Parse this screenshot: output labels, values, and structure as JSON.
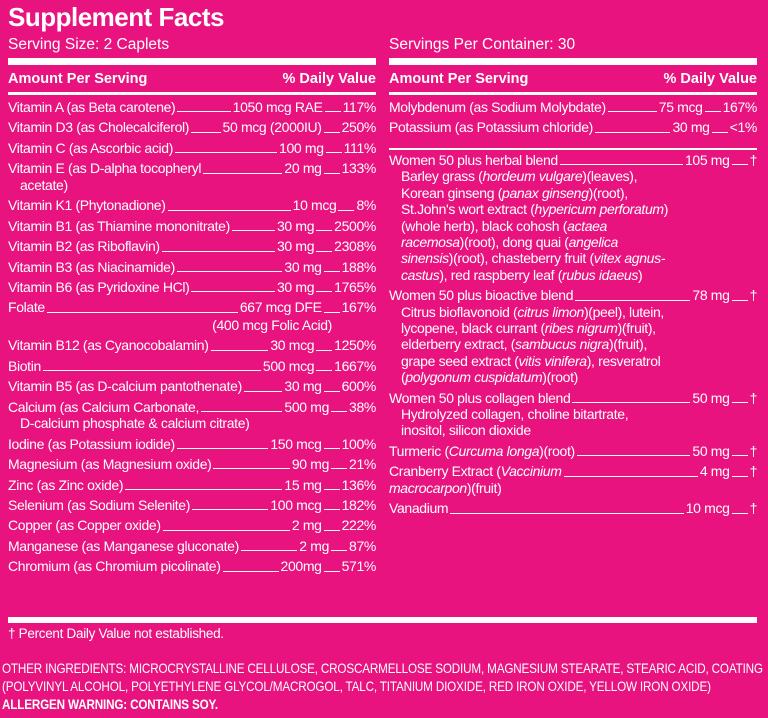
{
  "title": "Supplement Facts",
  "serving_size": "Serving Size: 2 Caplets",
  "servings_per_container": "Servings Per Container: 30",
  "headers": {
    "amount": "Amount Per Serving",
    "dv": "% Daily Value"
  },
  "left": [
    {
      "name": "Vitamin A (as Beta carotene)",
      "amount": "1050 mcg RAE",
      "dv": "117%"
    },
    {
      "name": "Vitamin D3 (as Cholecalciferol)",
      "amount": "50 mcg (2000IU)",
      "dv": "250%"
    },
    {
      "name": "Vitamin C (as Ascorbic acid)",
      "amount": "100 mg",
      "dv": "111%"
    },
    {
      "name": "Vitamin E (as D-alpha tocopheryl",
      "cont": "acetate)",
      "amount": "20 mg",
      "dv": "133%"
    },
    {
      "name": "Vitamin K1 (Phytonadione)",
      "amount": "10 mcg",
      "dv": "8%"
    },
    {
      "name": "Vitamin B1 (as Thiamine mononitrate)",
      "amount": "30 mg",
      "dv": "2500%"
    },
    {
      "name": "Vitamin B2 (as Riboflavin)",
      "amount": "30 mg",
      "dv": "2308%"
    },
    {
      "name": "Vitamin B3 (as Niacinamide)",
      "amount": "30 mg",
      "dv": "188%"
    },
    {
      "name": "Vitamin B6 (as Pyridoxine HCl)",
      "amount": "30 mg",
      "dv": "1765%"
    },
    {
      "name": "Folate",
      "amount": "667 mcg DFE",
      "dv": "167%",
      "sub": "(400 mcg Folic Acid)"
    },
    {
      "name": "Vitamin B12 (as Cyanocobalamin)",
      "amount": "30 mcg",
      "dv": "1250%"
    },
    {
      "name": "Biotin",
      "amount": "500 mcg",
      "dv": "1667%"
    },
    {
      "name": "Vitamin B5 (as D-calcium pantothenate)",
      "amount": "30 mg",
      "dv": "600%"
    },
    {
      "name": "Calcium (as Calcium Carbonate,",
      "cont": "D-calcium phosphate & calcium citrate)",
      "amount": "500 mg",
      "dv": "38%"
    },
    {
      "name": "Iodine (as Potassium iodide)",
      "amount": "150 mcg",
      "dv": "100%"
    },
    {
      "name": "Magnesium (as Magnesium oxide)",
      "amount": "90 mg",
      "dv": "21%"
    },
    {
      "name": "Zinc (as Zinc oxide)",
      "amount": "15 mg",
      "dv": "136%"
    },
    {
      "name": "Selenium (as Sodium Selenite)",
      "amount": "100 mcg",
      "dv": "182%"
    },
    {
      "name": "Copper (as Copper oxide)",
      "amount": "2 mg",
      "dv": "222%"
    },
    {
      "name": "Manganese (as Manganese gluconate)",
      "amount": "2 mg",
      "dv": "87%"
    },
    {
      "name": "Chromium (as Chromium picolinate)",
      "amount": "200mg",
      "dv": "571%"
    }
  ],
  "right_minerals": [
    {
      "name": "Molybdenum (as Sodium Molybdate)",
      "amount": "75 mcg",
      "dv": "167%"
    },
    {
      "name": "Potassium (as Potassium chloride)",
      "amount": "30 mg",
      "dv": "<1%"
    }
  ],
  "right_blends": [
    {
      "name": "Women 50 plus herbal blend",
      "amount": "105 mg",
      "dv": "†",
      "ingredients": [
        {
          "t": "Barley grass ("
        },
        {
          "t": "hordeum vulgare",
          "i": true
        },
        {
          "t": ")(leaves), Korean ginseng ("
        },
        {
          "t": "panax ginseng",
          "i": true
        },
        {
          "t": ")(root), St.John's wort extract ("
        },
        {
          "t": "hypericum perforatum",
          "i": true
        },
        {
          "t": ")(whole herb), black cohosh ("
        },
        {
          "t": "actaea racemosa",
          "i": true
        },
        {
          "t": ")(root), dong quai ("
        },
        {
          "t": "angelica sinensis",
          "i": true
        },
        {
          "t": ")(root), chasteberry fruit ("
        },
        {
          "t": "vitex agnus-castus",
          "i": true
        },
        {
          "t": "), red raspberry leaf ("
        },
        {
          "t": "rubus idaeus",
          "i": true
        },
        {
          "t": ")"
        }
      ]
    },
    {
      "name": "Women 50 plus bioactive blend",
      "amount": "78 mg",
      "dv": "†",
      "ingredients": [
        {
          "t": "Citrus bioflavonoid ("
        },
        {
          "t": "citrus limon",
          "i": true
        },
        {
          "t": ")(peel), lutein, lycopene, black currant ("
        },
        {
          "t": "ribes nigrum",
          "i": true
        },
        {
          "t": ")(fruit), elderberry extract, ("
        },
        {
          "t": "sambucus nigra",
          "i": true
        },
        {
          "t": ")(fruit), grape seed extract ("
        },
        {
          "t": "vitis vinifera",
          "i": true
        },
        {
          "t": "), resveratrol ("
        },
        {
          "t": "polygonum cuspidatum",
          "i": true
        },
        {
          "t": ")(root)"
        }
      ]
    },
    {
      "name": "Women 50 plus collagen blend",
      "amount": "50 mg",
      "dv": "†",
      "ingredients": [
        {
          "t": "Hydrolyzed collagen, choline bitartrate, inositol, silicon dioxide"
        }
      ]
    }
  ],
  "right_tail": [
    {
      "name_parts": [
        {
          "t": "Turmeric ("
        },
        {
          "t": "Curcuma longa",
          "i": true
        },
        {
          "t": ")(root)"
        }
      ],
      "amount": "50 mg",
      "dv": "†"
    },
    {
      "name_parts": [
        {
          "t": "Cranberry Extract ("
        },
        {
          "t": "Vaccinium",
          "i": true
        }
      ],
      "cont_parts": [
        {
          "t": "macrocarpon",
          "i": true
        },
        {
          "t": ")(fruit)"
        }
      ],
      "amount": "4 mg",
      "dv": "†"
    },
    {
      "name_parts": [
        {
          "t": "Vanadium"
        }
      ],
      "amount": "10 mcg",
      "dv": "†"
    }
  ],
  "footnote": "† Percent Daily Value not established.",
  "other_ingredients": "OTHER INGREDIENTS: MICROCRYSTALLINE CELLULOSE, CROSCARMELLOSE SODIUM, MAGNESIUM STEARATE, STEARIC ACID, COATING (POLYVINYL ALCOHOL, POLYETHYLENE GLYCOL/MACROGOL, TALC, TITANIUM DIOXIDE, RED IRON OXIDE, YELLOW IRON OXIDE)",
  "allergen": "ALLERGEN WARNING: CONTAINS SOY."
}
